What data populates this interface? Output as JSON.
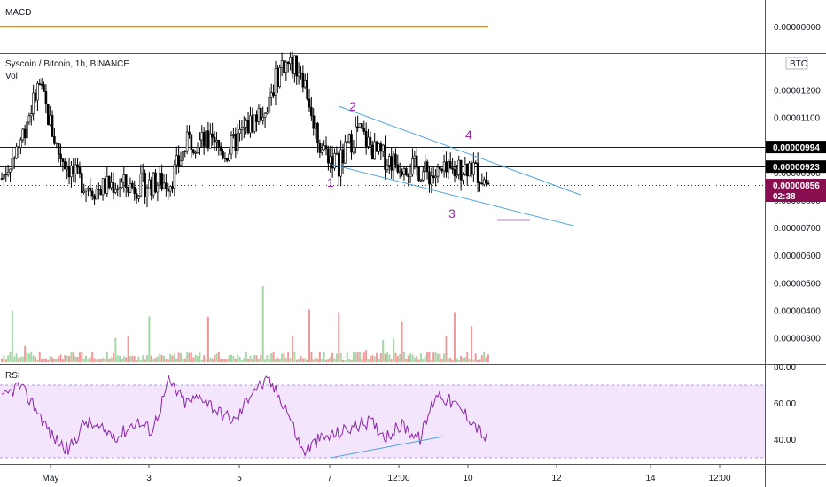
{
  "macd_pane": {
    "label": "MACD",
    "axis_value": "0.00000000",
    "line_color": "#f57c00"
  },
  "main_pane": {
    "title": "Syscoin / Bitcoin, 1h, BINANCE",
    "vol_label": "Vol",
    "currency": "BTC",
    "price_tags": [
      {
        "value": "0.00000994",
        "bg": "#000000"
      },
      {
        "value": "0.00000923",
        "bg": "#000000"
      },
      {
        "value": "0.00000856",
        "bg": "#880e4f"
      }
    ],
    "countdown": "02:38",
    "wave_labels": [
      "1",
      "2",
      "3",
      "4"
    ],
    "wave_color": "#9c27b0",
    "channel_color": "#4fa3e0"
  },
  "rsi_pane": {
    "label": "RSI",
    "band_color": "#f3e5fc",
    "line_color": "#8e24aa"
  },
  "chart_data": {
    "type": "candlestick",
    "title": "Syscoin / Bitcoin, 1h, BINANCE",
    "y_axis": {
      "unit": "BTC",
      "ticks": [
        "0.00000300",
        "0.00000400",
        "0.00000500",
        "0.00000600",
        "0.00000700",
        "0.00000800",
        "0.00000900",
        "0.00001000",
        "0.00001100",
        "0.00001200"
      ],
      "ylim": [
        2.5e-06,
        1.33e-05
      ]
    },
    "x_axis": {
      "ticks": [
        "May",
        "3",
        "5",
        "7",
        "12:00",
        "10",
        "12",
        "14",
        "12:00"
      ]
    },
    "horizontal_levels": [
      9.94e-06,
      9.23e-06
    ],
    "last_price": 8.56e-06,
    "close_series": [
      8.8e-06,
      1.02e-05,
      1.22e-05,
      9.8e-06,
      8.8e-06,
      8.4e-06,
      8.6e-06,
      8.5e-06,
      8.6e-06,
      8.7e-06,
      1.02e-05,
      1.01e-05,
      9.7e-06,
      1.06e-05,
      1.13e-05,
      1.3e-05,
      1.28e-05,
      1e-05,
      9.3e-06,
      1.06e-05,
      9.7e-06,
      9.4e-06,
      9.2e-06,
      8.9e-06,
      9e-06,
      9.3e-06,
      8.6e-06
    ],
    "rsi": {
      "levels": [
        "40.00",
        "60.00",
        "80.00"
      ],
      "band": [
        30,
        70
      ],
      "series": [
        62,
        70,
        58,
        42,
        34,
        50,
        45,
        42,
        50,
        45,
        72,
        60,
        64,
        55,
        50,
        68,
        72,
        58,
        33,
        40,
        43,
        47,
        50,
        42,
        48,
        40,
        66,
        60,
        52,
        40
      ]
    },
    "annotations": {
      "wave_labels": [
        "1",
        "2",
        "3",
        "4"
      ]
    }
  }
}
